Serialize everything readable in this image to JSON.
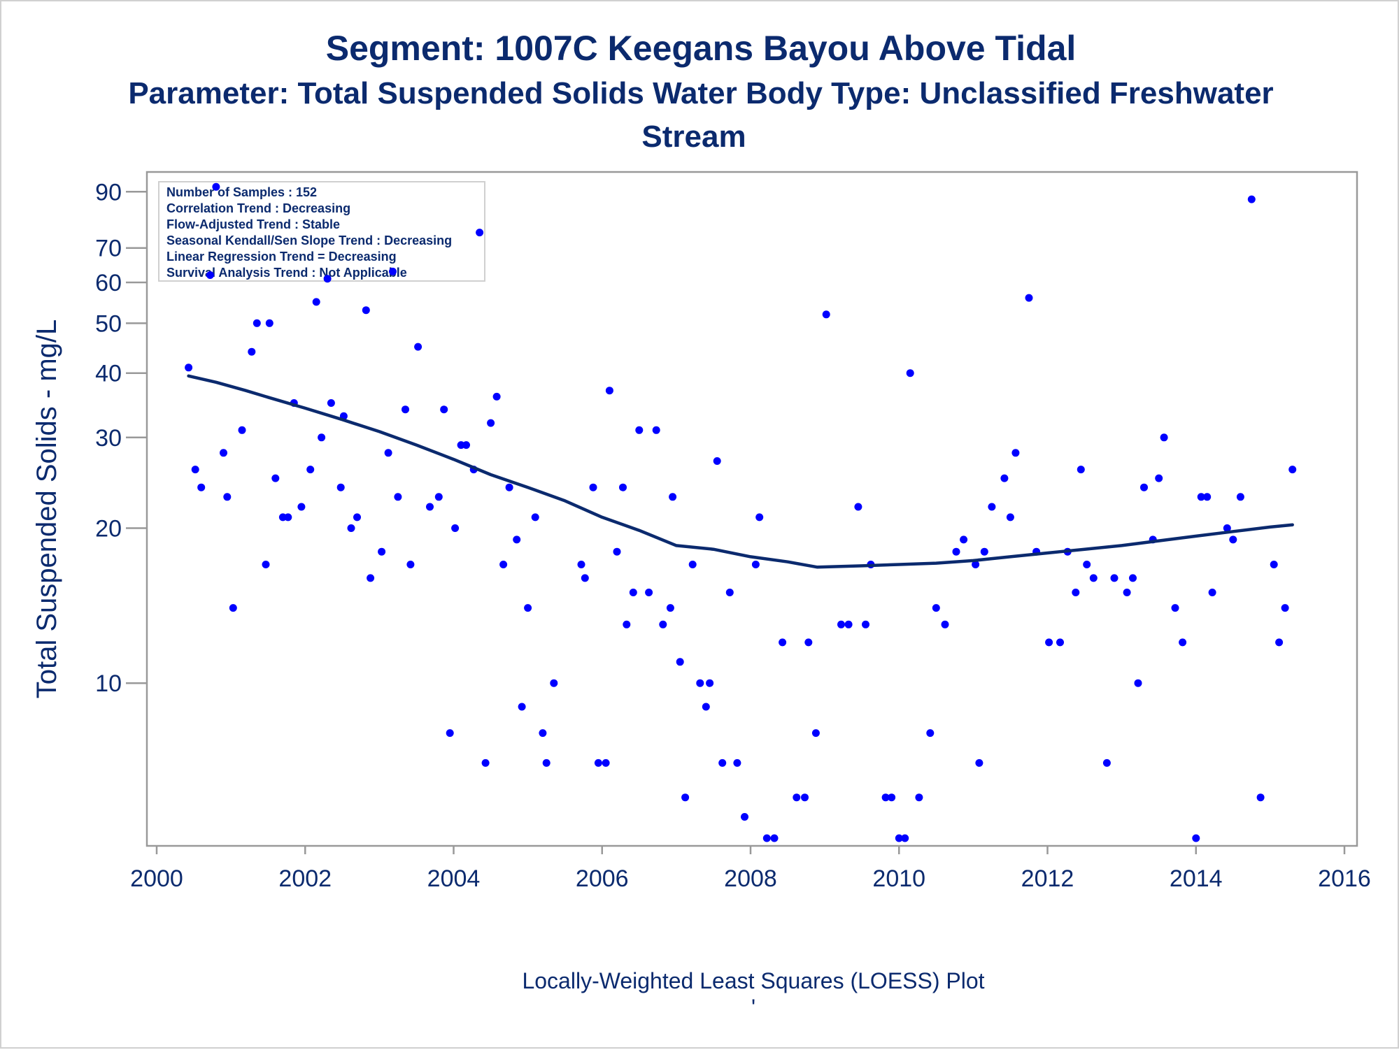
{
  "chart_data": {
    "type": "scatter",
    "title_line1": "Segment: 1007C  Keegans Bayou Above Tidal",
    "title_line2": "Parameter: Total Suspended Solids   Water Body Type: Unclassified Freshwater",
    "title_line3": "Stream",
    "xlabel": "",
    "ylabel": "Total Suspended Solids - mg/L",
    "footnote": "Locally-Weighted Least Squares (LOESS) Plot",
    "footnote_mark": "'",
    "xlim": [
      2000,
      2016
    ],
    "ylim": [
      5,
      95
    ],
    "y_scale": "log",
    "x_ticks": [
      2000,
      2002,
      2004,
      2006,
      2008,
      2010,
      2012,
      2014,
      2016
    ],
    "x_tick_labels": [
      "2000",
      "2002",
      "2004",
      "2006",
      "2008",
      "2010",
      "2012",
      "2014",
      "2016"
    ],
    "y_ticks": [
      10,
      20,
      30,
      40,
      50,
      60,
      70,
      90
    ],
    "y_tick_labels": [
      "10",
      "20",
      "30",
      "40",
      "50",
      "60",
      "70",
      "90"
    ],
    "grid": false,
    "legend": "none",
    "colors": {
      "points": "#0000ff",
      "loess": "#0b2a6e",
      "text": "#0b2a6e",
      "axis": "#999999"
    },
    "inset": {
      "placement": "top-left",
      "lines": [
        "Number of Samples : 152",
        "Correlation Trend : Decreasing",
        "Flow-Adjusted Trend : Stable",
        "Seasonal Kendall/Sen Slope Trend : Decreasing",
        "Linear Regression Trend = Decreasing",
        "Survival Analysis Trend : Not Applicable"
      ]
    },
    "points": [
      [
        2000.43,
        41
      ],
      [
        2000.52,
        26
      ],
      [
        2000.6,
        24
      ],
      [
        2000.72,
        62
      ],
      [
        2000.8,
        92
      ],
      [
        2000.9,
        28
      ],
      [
        2000.95,
        23
      ],
      [
        2001.03,
        14
      ],
      [
        2001.15,
        31
      ],
      [
        2001.28,
        44
      ],
      [
        2001.35,
        50
      ],
      [
        2001.47,
        17
      ],
      [
        2001.52,
        50
      ],
      [
        2001.6,
        25
      ],
      [
        2001.7,
        21
      ],
      [
        2001.77,
        21
      ],
      [
        2001.85,
        35
      ],
      [
        2001.95,
        22
      ],
      [
        2002.07,
        26
      ],
      [
        2002.15,
        55
      ],
      [
        2002.22,
        30
      ],
      [
        2002.3,
        61
      ],
      [
        2002.35,
        35
      ],
      [
        2002.48,
        24
      ],
      [
        2002.52,
        33
      ],
      [
        2002.62,
        20
      ],
      [
        2002.7,
        21
      ],
      [
        2002.82,
        53
      ],
      [
        2002.88,
        16
      ],
      [
        2003.03,
        18
      ],
      [
        2003.12,
        28
      ],
      [
        2003.18,
        63
      ],
      [
        2003.25,
        23
      ],
      [
        2003.35,
        34
      ],
      [
        2003.42,
        17
      ],
      [
        2003.52,
        45
      ],
      [
        2003.68,
        22
      ],
      [
        2003.8,
        23
      ],
      [
        2003.87,
        34
      ],
      [
        2003.95,
        8
      ],
      [
        2004.02,
        20
      ],
      [
        2004.1,
        29
      ],
      [
        2004.17,
        29
      ],
      [
        2004.27,
        26
      ],
      [
        2004.35,
        75
      ],
      [
        2004.43,
        7
      ],
      [
        2004.5,
        32
      ],
      [
        2004.58,
        36
      ],
      [
        2004.67,
        17
      ],
      [
        2004.75,
        24
      ],
      [
        2004.85,
        19
      ],
      [
        2004.92,
        9
      ],
      [
        2005.0,
        14
      ],
      [
        2005.1,
        21
      ],
      [
        2005.2,
        8
      ],
      [
        2005.25,
        7
      ],
      [
        2005.35,
        10
      ],
      [
        2005.72,
        17
      ],
      [
        2005.77,
        16
      ],
      [
        2005.88,
        24
      ],
      [
        2005.95,
        7
      ],
      [
        2006.05,
        7
      ],
      [
        2006.1,
        37
      ],
      [
        2006.2,
        18
      ],
      [
        2006.28,
        24
      ],
      [
        2006.33,
        13
      ],
      [
        2006.42,
        15
      ],
      [
        2006.5,
        31
      ],
      [
        2006.63,
        15
      ],
      [
        2006.73,
        31
      ],
      [
        2006.82,
        13
      ],
      [
        2006.92,
        14
      ],
      [
        2006.95,
        23
      ],
      [
        2007.05,
        11
      ],
      [
        2007.12,
        6
      ],
      [
        2007.22,
        17
      ],
      [
        2007.32,
        10
      ],
      [
        2007.4,
        9
      ],
      [
        2007.45,
        10
      ],
      [
        2007.55,
        27
      ],
      [
        2007.62,
        7
      ],
      [
        2007.72,
        15
      ],
      [
        2007.82,
        7
      ],
      [
        2007.92,
        5.5
      ],
      [
        2008.07,
        17
      ],
      [
        2008.12,
        21
      ],
      [
        2008.22,
        5
      ],
      [
        2008.32,
        5
      ],
      [
        2008.43,
        12
      ],
      [
        2008.62,
        6
      ],
      [
        2008.73,
        6
      ],
      [
        2008.78,
        12
      ],
      [
        2008.88,
        8
      ],
      [
        2009.02,
        52
      ],
      [
        2009.22,
        13
      ],
      [
        2009.32,
        13
      ],
      [
        2009.45,
        22
      ],
      [
        2009.55,
        13
      ],
      [
        2009.62,
        17
      ],
      [
        2009.82,
        6
      ],
      [
        2009.9,
        6
      ],
      [
        2010.0,
        5
      ],
      [
        2010.08,
        5
      ],
      [
        2010.15,
        40
      ],
      [
        2010.27,
        6
      ],
      [
        2010.42,
        8
      ],
      [
        2010.5,
        14
      ],
      [
        2010.62,
        13
      ],
      [
        2010.77,
        18
      ],
      [
        2010.87,
        19
      ],
      [
        2011.03,
        17
      ],
      [
        2011.08,
        7
      ],
      [
        2011.15,
        18
      ],
      [
        2011.25,
        22
      ],
      [
        2011.42,
        25
      ],
      [
        2011.5,
        21
      ],
      [
        2011.57,
        28
      ],
      [
        2011.75,
        56
      ],
      [
        2011.85,
        18
      ],
      [
        2012.02,
        12
      ],
      [
        2012.17,
        12
      ],
      [
        2012.27,
        18
      ],
      [
        2012.38,
        15
      ],
      [
        2012.45,
        26
      ],
      [
        2012.53,
        17
      ],
      [
        2012.62,
        16
      ],
      [
        2012.8,
        7
      ],
      [
        2012.9,
        16
      ],
      [
        2013.07,
        15
      ],
      [
        2013.15,
        16
      ],
      [
        2013.22,
        10
      ],
      [
        2013.3,
        24
      ],
      [
        2013.42,
        19
      ],
      [
        2013.5,
        25
      ],
      [
        2013.57,
        30
      ],
      [
        2013.72,
        14
      ],
      [
        2013.82,
        12
      ],
      [
        2014.0,
        5
      ],
      [
        2014.07,
        23
      ],
      [
        2014.15,
        23
      ],
      [
        2014.22,
        15
      ],
      [
        2014.42,
        20
      ],
      [
        2014.5,
        19
      ],
      [
        2014.6,
        23
      ],
      [
        2014.75,
        87
      ],
      [
        2014.87,
        6
      ],
      [
        2015.05,
        17
      ],
      [
        2015.12,
        12
      ],
      [
        2015.2,
        14
      ],
      [
        2015.3,
        26
      ]
    ],
    "loess": [
      [
        2000.43,
        39.5
      ],
      [
        2000.8,
        38.4
      ],
      [
        2001.2,
        37.0
      ],
      [
        2001.5,
        35.9
      ],
      [
        2002.0,
        34.2
      ],
      [
        2002.5,
        32.5
      ],
      [
        2003.0,
        30.8
      ],
      [
        2003.5,
        29.0
      ],
      [
        2004.0,
        27.2
      ],
      [
        2004.5,
        25.4
      ],
      [
        2005.0,
        24.0
      ],
      [
        2005.5,
        22.6
      ],
      [
        2006.0,
        21.0
      ],
      [
        2006.5,
        19.8
      ],
      [
        2007.0,
        18.5
      ],
      [
        2007.5,
        18.2
      ],
      [
        2008.0,
        17.6
      ],
      [
        2008.5,
        17.2
      ],
      [
        2008.9,
        16.8
      ],
      [
        2009.5,
        16.9
      ],
      [
        2010.0,
        17.0
      ],
      [
        2010.5,
        17.1
      ],
      [
        2011.0,
        17.3
      ],
      [
        2011.5,
        17.6
      ],
      [
        2012.0,
        17.9
      ],
      [
        2012.5,
        18.2
      ],
      [
        2013.0,
        18.5
      ],
      [
        2013.5,
        18.9
      ],
      [
        2014.0,
        19.3
      ],
      [
        2014.5,
        19.7
      ],
      [
        2015.0,
        20.1
      ],
      [
        2015.3,
        20.3
      ]
    ]
  }
}
